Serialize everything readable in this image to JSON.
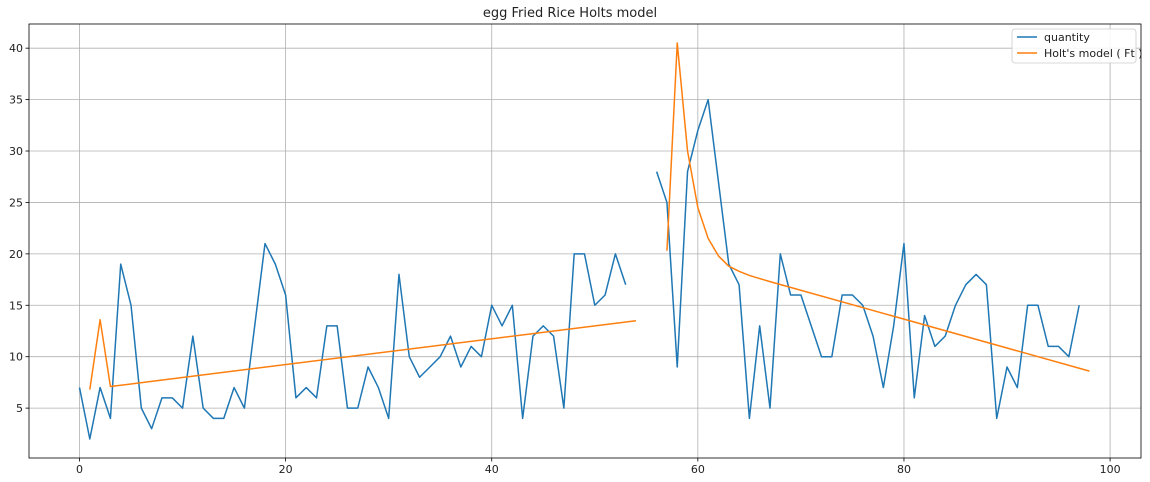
{
  "chart_data": {
    "type": "line",
    "title": "egg Fried Rice Holts model",
    "xlabel": "",
    "ylabel": "",
    "xlim": [
      -4.9,
      103
    ],
    "ylim": [
      0.15,
      42.35
    ],
    "xticks": [
      0,
      20,
      40,
      60,
      80,
      100
    ],
    "yticks": [
      5,
      10,
      15,
      20,
      25,
      30,
      35,
      40
    ],
    "grid": true,
    "legend_position": "top-right",
    "series": [
      {
        "name": "quantity",
        "color": "#1f77b4",
        "points": [
          [
            0,
            7
          ],
          [
            1,
            2
          ],
          [
            2,
            7
          ],
          [
            3,
            4
          ],
          [
            4,
            19
          ],
          [
            5,
            15
          ],
          [
            6,
            5
          ],
          [
            7,
            3
          ],
          [
            8,
            6
          ],
          [
            9,
            6
          ],
          [
            10,
            5
          ],
          [
            11,
            12
          ],
          [
            12,
            5
          ],
          [
            13,
            4
          ],
          [
            14,
            4
          ],
          [
            15,
            7
          ],
          [
            16,
            5
          ],
          [
            17,
            13
          ],
          [
            18,
            21
          ],
          [
            19,
            19
          ],
          [
            20,
            16
          ],
          [
            21,
            6
          ],
          [
            22,
            7
          ],
          [
            23,
            6
          ],
          [
            24,
            13
          ],
          [
            25,
            13
          ],
          [
            26,
            5
          ],
          [
            27,
            5
          ],
          [
            28,
            9
          ],
          [
            29,
            7
          ],
          [
            30,
            4
          ],
          [
            31,
            18
          ],
          [
            32,
            10
          ],
          [
            33,
            8
          ],
          [
            34,
            9
          ],
          [
            35,
            10
          ],
          [
            36,
            12
          ],
          [
            37,
            9
          ],
          [
            38,
            11
          ],
          [
            39,
            10
          ],
          [
            40,
            15
          ],
          [
            41,
            13
          ],
          [
            42,
            15
          ],
          [
            43,
            4
          ],
          [
            44,
            12
          ],
          [
            45,
            13
          ],
          [
            46,
            12
          ],
          [
            47,
            5
          ],
          [
            48,
            20
          ],
          [
            49,
            20
          ],
          [
            50,
            15
          ],
          [
            51,
            16
          ],
          [
            52,
            20
          ],
          [
            53,
            17
          ],
          null,
          [
            56,
            28
          ],
          [
            57,
            25
          ],
          [
            58,
            9
          ],
          [
            59,
            28
          ],
          [
            60,
            32
          ],
          [
            61,
            35
          ],
          [
            62,
            27
          ],
          [
            63,
            19
          ],
          [
            64,
            17
          ],
          [
            65,
            4
          ],
          [
            66,
            13
          ],
          [
            67,
            5
          ],
          [
            68,
            20
          ],
          [
            69,
            16
          ],
          [
            70,
            16
          ],
          [
            71,
            13
          ],
          [
            72,
            10
          ],
          [
            73,
            10
          ],
          [
            74,
            16
          ],
          [
            75,
            16
          ],
          [
            76,
            15
          ],
          [
            77,
            12
          ],
          [
            78,
            7
          ],
          [
            79,
            13
          ],
          [
            80,
            21
          ],
          [
            81,
            6
          ],
          [
            82,
            14
          ],
          [
            83,
            11
          ],
          [
            84,
            12
          ],
          [
            85,
            15
          ],
          [
            86,
            17
          ],
          [
            87,
            18
          ],
          [
            88,
            17
          ],
          [
            89,
            4
          ],
          [
            90,
            9
          ],
          [
            91,
            7
          ],
          [
            92,
            15
          ],
          [
            93,
            15
          ],
          [
            94,
            11
          ],
          [
            95,
            11
          ],
          [
            96,
            10
          ],
          [
            97,
            15
          ]
        ]
      },
      {
        "name": "Holt's model ( Ft )",
        "color": "#ff7f0e",
        "points": [
          [
            1,
            6.8
          ],
          [
            2,
            13.6
          ],
          [
            3,
            7.1
          ],
          [
            54,
            13.5
          ],
          null,
          [
            57,
            20.3
          ],
          [
            58,
            40.5
          ],
          [
            59,
            30
          ],
          [
            60,
            24.5
          ],
          [
            61,
            21.5
          ],
          [
            62,
            19.8
          ],
          [
            63,
            18.8
          ],
          [
            64,
            18.3
          ],
          [
            65,
            17.9
          ],
          [
            66,
            17.6
          ],
          [
            67,
            17.3
          ],
          [
            98,
            8.6
          ]
        ]
      }
    ]
  }
}
